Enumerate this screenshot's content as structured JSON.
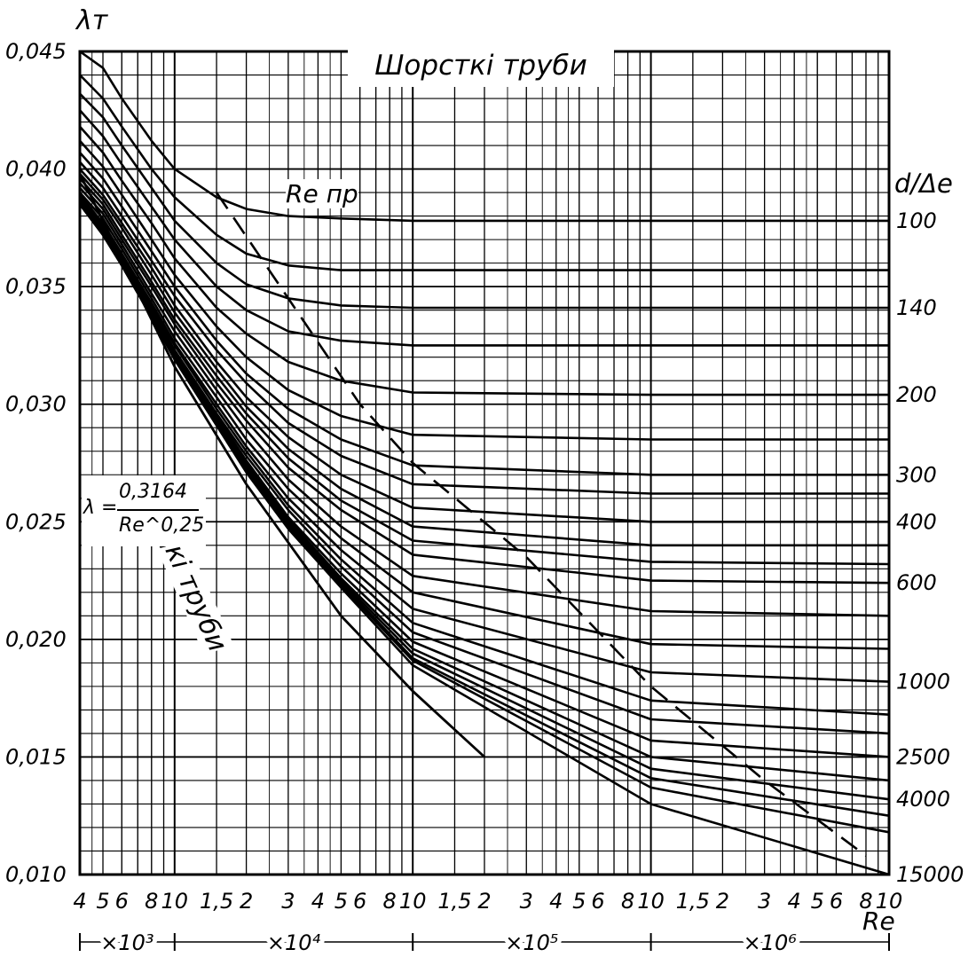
{
  "chart_data": {
    "type": "line",
    "title": "Шорсткі труби",
    "ylabel": "λт",
    "xlabel": "Re",
    "right_axis_label": "d/Δe",
    "x_scale": "log",
    "xlim": [
      4000,
      10000000
    ],
    "ylim": [
      0.01,
      0.045
    ],
    "grid": true,
    "y_ticks": [
      "0,010",
      "0,015",
      "0,020",
      "0,025",
      "0,030",
      "0,035",
      "0,040",
      "0,045"
    ],
    "x_ticks": [
      "4",
      "5",
      "6",
      "8",
      "10",
      "1,5",
      "2",
      "3",
      "4",
      "5",
      "6",
      "8",
      "10",
      "1,5",
      "2",
      "3",
      "4",
      "5",
      "6",
      "8",
      "10",
      "1,5",
      "2",
      "3",
      "4",
      "5",
      "6",
      "8",
      "10"
    ],
    "multipliers": [
      "×10³",
      "×10⁴",
      "×10⁵",
      "×10⁶"
    ],
    "smooth_label": "Гладкі труби",
    "transition_label": "Re пр",
    "formula": {
      "lhs": "λ =",
      "numerator": "0,3164",
      "denominator": "Re^0,25"
    },
    "curve_labels": [
      "100",
      "140",
      "200",
      "300",
      "400",
      "600",
      "1000",
      "2500",
      "4000",
      "15000"
    ],
    "series": [
      {
        "name": "100",
        "plateau": 0.0378,
        "x": [
          4000,
          5000,
          6000,
          8000,
          10000,
          15000,
          20000,
          30000,
          50000,
          100000,
          1000000,
          10000000
        ],
        "y": [
          0.045,
          0.0443,
          0.043,
          0.0412,
          0.04,
          0.0388,
          0.0383,
          0.038,
          0.0379,
          0.0378,
          0.0378,
          0.0378
        ]
      },
      {
        "name": "",
        "plateau": 0.0357,
        "x": [
          4000,
          5000,
          6000,
          8000,
          10000,
          15000,
          20000,
          30000,
          50000,
          100000,
          1000000,
          10000000
        ],
        "y": [
          0.044,
          0.043,
          0.0418,
          0.04,
          0.0388,
          0.0372,
          0.0364,
          0.0359,
          0.0357,
          0.0357,
          0.0357,
          0.0357
        ]
      },
      {
        "name": "140",
        "plateau": 0.0341,
        "x": [
          4000,
          5000,
          6000,
          8000,
          10000,
          15000,
          20000,
          30000,
          50000,
          100000,
          1000000,
          10000000
        ],
        "y": [
          0.0432,
          0.0422,
          0.041,
          0.0392,
          0.0378,
          0.036,
          0.0351,
          0.0345,
          0.0342,
          0.0341,
          0.0341,
          0.0341
        ]
      },
      {
        "name": "",
        "plateau": 0.0325,
        "x": [
          4000,
          5000,
          6000,
          8000,
          10000,
          15000,
          20000,
          30000,
          50000,
          100000,
          1000000,
          10000000
        ],
        "y": [
          0.0425,
          0.0414,
          0.0402,
          0.0384,
          0.037,
          0.035,
          0.034,
          0.0331,
          0.0327,
          0.0325,
          0.0325,
          0.0325
        ]
      },
      {
        "name": "200",
        "plateau": 0.0304,
        "x": [
          4000,
          5000,
          6000,
          8000,
          10000,
          15000,
          20000,
          30000,
          50000,
          100000,
          1000000,
          10000000
        ],
        "y": [
          0.0418,
          0.0407,
          0.0395,
          0.0377,
          0.0362,
          0.0341,
          0.033,
          0.0318,
          0.031,
          0.0305,
          0.0304,
          0.0304
        ]
      },
      {
        "name": "",
        "plateau": 0.0285,
        "x": [
          4000,
          5000,
          6000,
          8000,
          10000,
          15000,
          20000,
          30000,
          50000,
          100000,
          1000000,
          10000000
        ],
        "y": [
          0.0412,
          0.0401,
          0.0389,
          0.037,
          0.0355,
          0.0333,
          0.032,
          0.0306,
          0.0295,
          0.0287,
          0.0285,
          0.0285
        ]
      },
      {
        "name": "300",
        "plateau": 0.027,
        "x": [
          4000,
          5000,
          6000,
          8000,
          10000,
          15000,
          20000,
          30000,
          50000,
          100000,
          1000000,
          10000000
        ],
        "y": [
          0.0407,
          0.0396,
          0.0384,
          0.0365,
          0.035,
          0.0327,
          0.0313,
          0.0298,
          0.0285,
          0.0274,
          0.027,
          0.027
        ]
      },
      {
        "name": "",
        "plateau": 0.0262,
        "x": [
          4000,
          5000,
          6000,
          8000,
          10000,
          15000,
          20000,
          30000,
          50000,
          100000,
          1000000,
          10000000
        ],
        "y": [
          0.0403,
          0.0392,
          0.038,
          0.0361,
          0.0346,
          0.0323,
          0.0309,
          0.0292,
          0.0278,
          0.0266,
          0.0262,
          0.0262
        ]
      },
      {
        "name": "400",
        "plateau": 0.025,
        "x": [
          4000,
          5000,
          6000,
          8000,
          10000,
          15000,
          20000,
          30000,
          50000,
          100000,
          1000000,
          10000000
        ],
        "y": [
          0.04,
          0.0389,
          0.0377,
          0.0358,
          0.0342,
          0.0318,
          0.0303,
          0.0286,
          0.027,
          0.0256,
          0.025,
          0.025
        ]
      },
      {
        "name": "",
        "plateau": 0.024,
        "x": [
          4000,
          5000,
          6000,
          8000,
          10000,
          15000,
          20000,
          30000,
          50000,
          100000,
          1000000,
          10000000
        ],
        "y": [
          0.0398,
          0.0387,
          0.0375,
          0.0355,
          0.0339,
          0.0315,
          0.0299,
          0.0281,
          0.0264,
          0.0248,
          0.024,
          0.024
        ]
      },
      {
        "name": "",
        "plateau": 0.0232,
        "x": [
          4000,
          5000,
          6000,
          8000,
          10000,
          15000,
          20000,
          30000,
          50000,
          100000,
          1000000,
          10000000
        ],
        "y": [
          0.0396,
          0.0385,
          0.0372,
          0.0352,
          0.0336,
          0.0312,
          0.0296,
          0.0277,
          0.0259,
          0.0242,
          0.0233,
          0.0232
        ]
      },
      {
        "name": "600",
        "plateau": 0.0224,
        "x": [
          4000,
          5000,
          6000,
          8000,
          10000,
          15000,
          20000,
          30000,
          50000,
          100000,
          1000000,
          10000000
        ],
        "y": [
          0.0394,
          0.0383,
          0.037,
          0.035,
          0.0334,
          0.0309,
          0.0293,
          0.0273,
          0.0255,
          0.0236,
          0.0225,
          0.0224
        ]
      },
      {
        "name": "",
        "plateau": 0.021,
        "x": [
          4000,
          5000,
          6000,
          8000,
          10000,
          15000,
          20000,
          30000,
          50000,
          100000,
          1000000,
          10000000
        ],
        "y": [
          0.0392,
          0.0381,
          0.0368,
          0.0347,
          0.0331,
          0.0306,
          0.0289,
          0.0268,
          0.0248,
          0.0227,
          0.0212,
          0.021
        ]
      },
      {
        "name": "",
        "plateau": 0.0196,
        "x": [
          4000,
          5000,
          6000,
          8000,
          10000,
          15000,
          20000,
          30000,
          50000,
          100000,
          1000000,
          10000000
        ],
        "y": [
          0.039,
          0.0379,
          0.0366,
          0.0345,
          0.0328,
          0.0303,
          0.0285,
          0.0264,
          0.0243,
          0.022,
          0.0198,
          0.0196
        ]
      },
      {
        "name": "1000",
        "plateau": 0.0182,
        "x": [
          4000,
          5000,
          6000,
          8000,
          10000,
          15000,
          20000,
          30000,
          50000,
          100000,
          1000000,
          10000000
        ],
        "y": [
          0.0389,
          0.0377,
          0.0364,
          0.0343,
          0.0326,
          0.03,
          0.0282,
          0.026,
          0.0238,
          0.0213,
          0.0186,
          0.0182
        ]
      },
      {
        "name": "",
        "plateau": 0.0168,
        "x": [
          4000,
          5000,
          6000,
          8000,
          10000,
          15000,
          20000,
          30000,
          50000,
          100000,
          1000000,
          10000000
        ],
        "y": [
          0.0388,
          0.0376,
          0.0363,
          0.0342,
          0.0325,
          0.0298,
          0.028,
          0.0257,
          0.0234,
          0.0207,
          0.0174,
          0.0168
        ]
      },
      {
        "name": "",
        "plateau": 0.016,
        "x": [
          4000,
          5000,
          6000,
          8000,
          10000,
          15000,
          20000,
          30000,
          50000,
          100000,
          1000000,
          10000000
        ],
        "y": [
          0.0387,
          0.0375,
          0.0362,
          0.0341,
          0.0323,
          0.0296,
          0.0278,
          0.0255,
          0.0231,
          0.0203,
          0.0166,
          0.016
        ]
      },
      {
        "name": "2500",
        "plateau": 0.015,
        "x": [
          4000,
          5000,
          6000,
          8000,
          10000,
          15000,
          20000,
          30000,
          50000,
          100000,
          1000000,
          10000000
        ],
        "y": [
          0.0386,
          0.0374,
          0.0361,
          0.034,
          0.0322,
          0.0295,
          0.0276,
          0.0252,
          0.0228,
          0.0199,
          0.0157,
          0.015
        ]
      },
      {
        "name": "",
        "plateau": 0.014,
        "x": [
          4000,
          5000,
          6000,
          8000,
          10000,
          15000,
          20000,
          30000,
          50000,
          100000,
          1000000,
          10000000
        ],
        "y": [
          0.0386,
          0.0374,
          0.036,
          0.0339,
          0.0321,
          0.0294,
          0.0275,
          0.0251,
          0.0226,
          0.0196,
          0.015,
          0.014
        ]
      },
      {
        "name": "4000",
        "plateau": 0.0132,
        "x": [
          4000,
          5000,
          6000,
          8000,
          10000,
          15000,
          20000,
          30000,
          50000,
          100000,
          1000000,
          10000000
        ],
        "y": [
          0.0385,
          0.0373,
          0.036,
          0.0338,
          0.032,
          0.0293,
          0.0274,
          0.025,
          0.0225,
          0.0194,
          0.0145,
          0.0132
        ]
      },
      {
        "name": "",
        "plateau": 0.0125,
        "x": [
          4000,
          5000,
          6000,
          8000,
          10000,
          15000,
          20000,
          30000,
          50000,
          100000,
          1000000,
          10000000
        ],
        "y": [
          0.0385,
          0.0373,
          0.0359,
          0.0338,
          0.032,
          0.0292,
          0.0273,
          0.0249,
          0.0224,
          0.0192,
          0.0141,
          0.0125
        ]
      },
      {
        "name": "",
        "plateau": 0.0118,
        "x": [
          4000,
          5000,
          6000,
          8000,
          10000,
          15000,
          20000,
          30000,
          50000,
          100000,
          1000000,
          10000000
        ],
        "y": [
          0.0385,
          0.0372,
          0.0359,
          0.0337,
          0.0319,
          0.0291,
          0.0272,
          0.0248,
          0.0223,
          0.0191,
          0.0137,
          0.0118
        ]
      },
      {
        "name": "15000",
        "plateau": 0.01,
        "x": [
          4000,
          5000,
          6000,
          8000,
          10000,
          15000,
          20000,
          30000,
          50000,
          100000,
          1000000,
          10000000
        ],
        "y": [
          0.0385,
          0.0372,
          0.0359,
          0.0337,
          0.0319,
          0.0291,
          0.0271,
          0.0247,
          0.0222,
          0.0189,
          0.013,
          0.01
        ]
      }
    ],
    "smooth_line": {
      "x": [
        4000,
        10000,
        20000,
        50000,
        100000,
        200000
      ],
      "y": [
        0.0398,
        0.0316,
        0.0266,
        0.021,
        0.0178,
        0.015
      ]
    },
    "transition_line": {
      "x": [
        15000,
        30000,
        60000,
        100000,
        300000,
        1000000,
        3000000,
        8000000
      ],
      "y": [
        0.039,
        0.0345,
        0.03,
        0.0275,
        0.0235,
        0.018,
        0.014,
        0.0108
      ]
    }
  }
}
